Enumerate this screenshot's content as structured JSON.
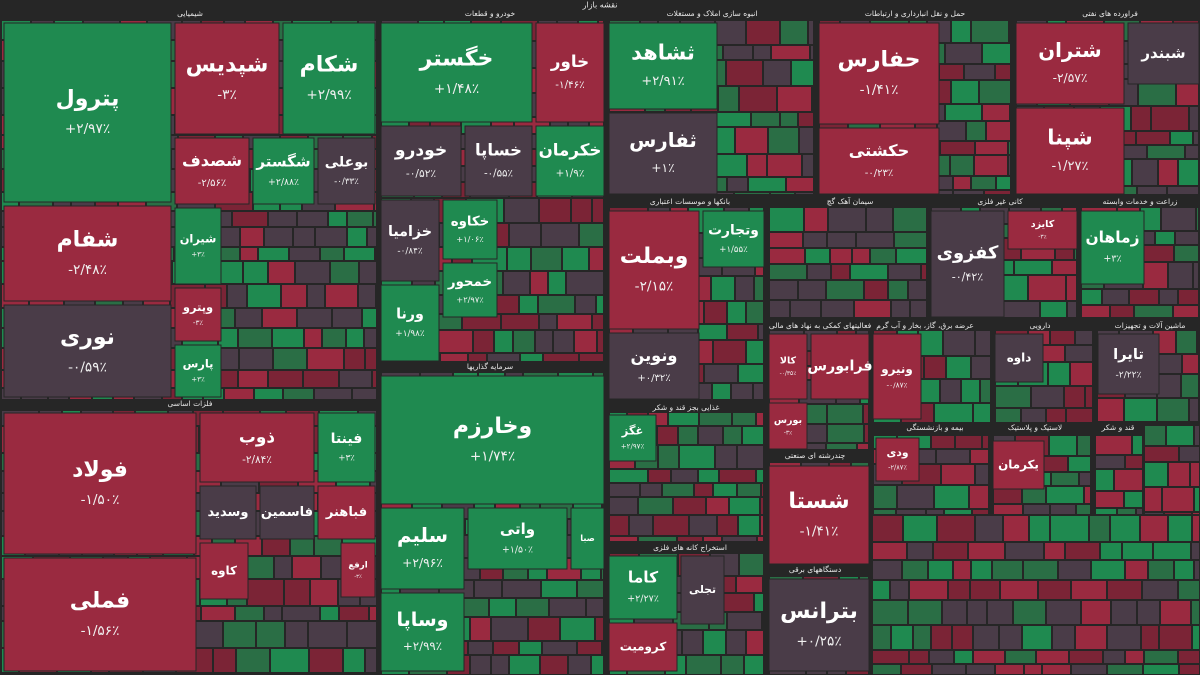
{
  "title": "نقشه بازار",
  "sectors": [
    {
      "name": "شیمیایی",
      "tiles": [
        {
          "symbol": "پترول",
          "change": "+۲/۹۷٪"
        },
        {
          "symbol": "شپدیس",
          "change": "-۳٪"
        },
        {
          "symbol": "شکام",
          "change": "+۲/۹۹٪"
        },
        {
          "symbol": "شفام",
          "change": "-۲/۴۸٪"
        },
        {
          "symbol": "نوری",
          "change": "-۰/۵۹٪"
        },
        {
          "symbol": "شصدف",
          "change": "-۲/۵۶٪"
        },
        {
          "symbol": "شگستر",
          "change": "+۲/۸۸٪"
        },
        {
          "symbol": "بوعلی",
          "change": "-۰/۳۳٪"
        },
        {
          "symbol": "شیران",
          "change": "+۳٪"
        },
        {
          "symbol": "وپترو",
          "change": "-۳٪"
        },
        {
          "symbol": "پارس",
          "change": "+۳٪"
        }
      ]
    },
    {
      "name": "فلزات اساسی",
      "tiles": [
        {
          "symbol": "فولاد",
          "change": "-۱/۵۰٪"
        },
        {
          "symbol": "فملی",
          "change": "-۱/۵۶٪"
        },
        {
          "symbol": "ذوب",
          "change": "-۲/۸۴٪"
        },
        {
          "symbol": "فینتا",
          "change": "+۳٪"
        },
        {
          "symbol": "وسدید"
        },
        {
          "symbol": "فاسمین"
        },
        {
          "symbol": "فباهنر"
        },
        {
          "symbol": "کاوه"
        },
        {
          "symbol": "ارفع",
          "change": "-۳٪"
        }
      ]
    },
    {
      "name": "خودرو و قطعات",
      "tiles": [
        {
          "symbol": "خگستر",
          "change": "+۱/۴۸٪"
        },
        {
          "symbol": "خاور",
          "change": "-۱/۴۶٪"
        },
        {
          "symbol": "خودرو",
          "change": "-۰/۵۲٪"
        },
        {
          "symbol": "خساپا",
          "change": "-۰/۵۵٪"
        },
        {
          "symbol": "خکرمان",
          "change": "+۱/۹٪"
        },
        {
          "symbol": "خزامیا",
          "change": "-۰/۸۴٪"
        },
        {
          "symbol": "خکاوه",
          "change": "+۱/۰۶٪"
        },
        {
          "symbol": "خمحور",
          "change": "+۲/۹۷٪"
        },
        {
          "symbol": "ورنا",
          "change": "+۱/۹۸٪"
        }
      ]
    },
    {
      "name": "سرمایه گذاریها",
      "tiles": [
        {
          "symbol": "وخارزم",
          "change": "+۱/۷۴٪"
        },
        {
          "symbol": "سلیم",
          "change": "+۲/۹۶٪"
        },
        {
          "symbol": "واتی",
          "change": "+۱/۵۰٪"
        },
        {
          "symbol": "صبا"
        },
        {
          "symbol": "وساپا",
          "change": "+۲/۹۹٪"
        }
      ]
    },
    {
      "name": "انبوه سازی املاک و مستغلات",
      "tiles": [
        {
          "symbol": "ثشاهد",
          "change": "+۲/۹۱٪"
        },
        {
          "symbol": "ثفارس",
          "change": "+۱٪"
        }
      ]
    },
    {
      "name": "بانکها و موسسات اعتباری",
      "tiles": [
        {
          "symbol": "وبملت",
          "change": "-۲/۱۵٪"
        },
        {
          "symbol": "ونوین",
          "change": "+۰/۳۲٪"
        },
        {
          "symbol": "وتجارت",
          "change": "+۱/۵۵٪"
        }
      ]
    },
    {
      "name": "غذایی بجز قند و شکر",
      "tiles": [
        {
          "symbol": "غگز",
          "change": "+۲/۹۷٪"
        }
      ]
    },
    {
      "name": "استخراج کانه های فلزی",
      "tiles": [
        {
          "symbol": "کاما",
          "change": "+۲/۲۷٪"
        },
        {
          "symbol": "تجلی"
        },
        {
          "symbol": "کرومیت"
        }
      ]
    },
    {
      "name": "حمل و نقل انبارداری و ارتباطات",
      "tiles": [
        {
          "symbol": "حفارس",
          "change": "-۱/۴۱٪"
        },
        {
          "symbol": "حکشتی",
          "change": "-۰/۲۳٪"
        }
      ]
    },
    {
      "name": "فراورده های نفتی",
      "tiles": [
        {
          "symbol": "شتران",
          "change": "-۲/۵۷٪"
        },
        {
          "symbol": "شپنا",
          "change": "-۱/۲۷٪"
        },
        {
          "symbol": "شبندر"
        }
      ]
    },
    {
      "name": "سیمان آهک گچ",
      "tiles": []
    },
    {
      "name": "کانی غیر فلزی",
      "tiles": [
        {
          "symbol": "کفزوی",
          "change": "-۰/۴۲٪"
        },
        {
          "symbol": "کایزد",
          "change": "-۳٪"
        }
      ]
    },
    {
      "name": "زراعت و خدمات وابسته",
      "tiles": [
        {
          "symbol": "زماهان",
          "change": "+۳٪"
        }
      ]
    },
    {
      "name": "فعالیتهای کمکی به نهاد های مالی",
      "tiles": [
        {
          "symbol": "کالا",
          "change": "-۰/۳۵٪"
        },
        {
          "symbol": "فرابورس"
        },
        {
          "symbol": "بورس",
          "change": "-۳٪"
        }
      ]
    },
    {
      "name": "عرضه برق، گاز، بخار و آب گرم",
      "tiles": [
        {
          "symbol": "ونیرو",
          "change": "-۰/۸۷٪"
        }
      ]
    },
    {
      "name": "دارویی",
      "tiles": [
        {
          "symbol": "داوه"
        }
      ]
    },
    {
      "name": "ماشین آلات و تجهیزات",
      "tiles": [
        {
          "symbol": "تایرا",
          "change": "-۲/۲۲٪"
        }
      ]
    },
    {
      "name": "چندرشته ای صنعتی",
      "tiles": [
        {
          "symbol": "شستا",
          "change": "-۱/۴۱٪"
        }
      ]
    },
    {
      "name": "دستگاههای برقی",
      "tiles": [
        {
          "symbol": "بترانس",
          "change": "+۰/۲۵٪"
        }
      ]
    },
    {
      "name": "بیمه و بازنشستگی",
      "tiles": [
        {
          "symbol": "ودی",
          "change": "-۲/۸۷٪"
        }
      ]
    },
    {
      "name": "لاستیک و پلاستیک",
      "tiles": [
        {
          "symbol": "یکرمان"
        }
      ]
    },
    {
      "name": "قند و شکر",
      "tiles": []
    }
  ]
}
